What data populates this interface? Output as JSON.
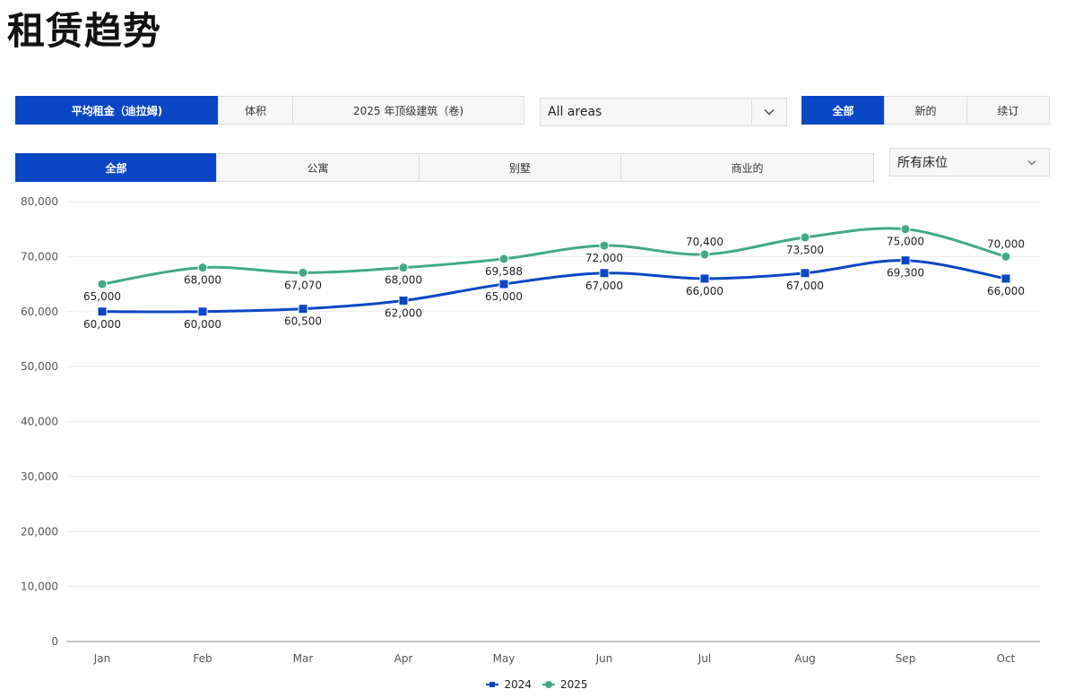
{
  "page_title": "租赁趋势",
  "metric_tabs": [
    {
      "label": "平均租金（迪拉姆)",
      "active": true
    },
    {
      "label": "体积",
      "active": false
    },
    {
      "label": "2025 年顶级建筑（卷)",
      "active": false
    }
  ],
  "area_select": {
    "value": "All areas"
  },
  "contract_tabs": [
    {
      "label": "全部",
      "active": true
    },
    {
      "label": "新的",
      "active": false
    },
    {
      "label": "续订",
      "active": false
    }
  ],
  "type_tabs": [
    {
      "label": "全部",
      "active": true
    },
    {
      "label": "公寓",
      "active": false
    },
    {
      "label": "别墅",
      "active": false
    },
    {
      "label": "商业的",
      "active": false
    }
  ],
  "beds_select": {
    "value": "所有床位"
  },
  "colors": {
    "accent": "#0a47c4",
    "series_2024": "#0a47c4",
    "series_2025": "#41a985"
  },
  "chart_data": {
    "type": "line",
    "x": [
      "Jan",
      "Feb",
      "Mar",
      "Apr",
      "May",
      "Jun",
      "Jul",
      "Aug",
      "Sep",
      "Oct"
    ],
    "ylim": [
      0,
      80000
    ],
    "yticks": [
      0,
      10000,
      20000,
      30000,
      40000,
      50000,
      60000,
      70000,
      80000
    ],
    "grid": true,
    "legend": "bottom-center",
    "data_labels": true,
    "series": [
      {
        "name": "2024",
        "color": "#0a47c4",
        "marker": "square",
        "values": [
          60000,
          60000,
          60500,
          62000,
          65000,
          67000,
          66000,
          67000,
          69300,
          66000
        ]
      },
      {
        "name": "2025",
        "color": "#41a985",
        "marker": "circle",
        "values": [
          65000,
          68000,
          67070,
          68000,
          69588,
          72000,
          70400,
          73500,
          75000,
          70000
        ]
      }
    ]
  }
}
